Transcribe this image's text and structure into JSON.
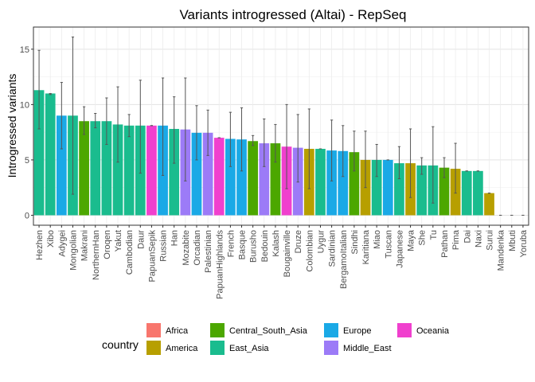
{
  "chart_data": {
    "type": "bar",
    "title": "Variants introgressed (Altai) - RepSeq",
    "xlabel": "",
    "ylabel": "Introgressed variants",
    "ylim": [
      -0.9,
      17.0
    ],
    "yticks": [
      0,
      5,
      10,
      15
    ],
    "grid": true,
    "legend_position": "bottom",
    "legend_title": "country",
    "groups": [
      {
        "name": "Africa",
        "color": "#F8766D"
      },
      {
        "name": "America",
        "color": "#B79F00"
      },
      {
        "name": "Central_South_Asia",
        "color": "#4CA700"
      },
      {
        "name": "East_Asia",
        "color": "#1ABC8E"
      },
      {
        "name": "Europe",
        "color": "#1AA9E6"
      },
      {
        "name": "Middle_East",
        "color": "#9C7BF7"
      },
      {
        "name": "Oceania",
        "color": "#F040CE"
      }
    ],
    "categories": [
      "Hezhen",
      "Xibo",
      "Adygei",
      "Mongolian",
      "Makrani",
      "NorthernHan",
      "Oroqen",
      "Yakut",
      "Cambodian",
      "Daur",
      "PapuanSepik",
      "Russian",
      "Han",
      "Mozabite",
      "Orcadian",
      "Palestinian",
      "PapuanHighlands",
      "French",
      "Basque",
      "Burusho",
      "Bedouin",
      "Kalash",
      "Bougainville",
      "Druze",
      "Colombian",
      "Uygur",
      "Sardinian",
      "BergamoItalian",
      "Sindhi",
      "Karitiana",
      "Miao",
      "Tuscan",
      "Japanese",
      "Maya",
      "She",
      "Tu",
      "Pathan",
      "Pima",
      "Dai",
      "Naxi",
      "Surui",
      "Mandenka",
      "Mbuti",
      "Yoruba"
    ],
    "values": [
      11.3,
      11.0,
      9.0,
      9.0,
      8.5,
      8.5,
      8.5,
      8.2,
      8.1,
      8.1,
      8.1,
      8.1,
      7.8,
      7.75,
      7.45,
      7.45,
      7.0,
      6.9,
      6.85,
      6.7,
      6.5,
      6.5,
      6.2,
      6.1,
      6.0,
      6.0,
      5.85,
      5.8,
      5.7,
      5.0,
      5.0,
      5.0,
      4.7,
      4.7,
      4.5,
      4.5,
      4.3,
      4.2,
      4.0,
      4.0,
      2.0,
      0.0,
      0.0,
      0.0
    ],
    "error_low": [
      7.8,
      10.9,
      6.0,
      1.9,
      7.3,
      7.9,
      6.4,
      4.8,
      7.1,
      3.8,
      8.1,
      3.6,
      4.7,
      3.1,
      5.0,
      5.4,
      7.0,
      4.4,
      4.0,
      6.3,
      4.4,
      4.8,
      2.4,
      3.0,
      2.4,
      6.0,
      3.1,
      3.5,
      4.0,
      2.5,
      3.5,
      5.0,
      3.3,
      1.6,
      3.7,
      1.1,
      3.4,
      2.0,
      4.0,
      4.0,
      2.0,
      0.0,
      0.0,
      0.0
    ],
    "error_high": [
      14.9,
      11.0,
      12.0,
      16.1,
      9.8,
      9.2,
      10.6,
      11.6,
      9.1,
      12.2,
      8.1,
      12.4,
      10.7,
      12.4,
      9.9,
      9.5,
      7.0,
      9.3,
      9.7,
      7.2,
      8.7,
      8.2,
      10.0,
      9.1,
      9.6,
      6.0,
      8.6,
      8.1,
      7.6,
      7.6,
      6.4,
      5.0,
      6.2,
      7.8,
      5.2,
      8.0,
      5.2,
      6.5,
      4.0,
      4.0,
      2.0,
      0.0,
      0.0,
      0.0
    ],
    "group_index": [
      3,
      3,
      4,
      3,
      2,
      3,
      3,
      3,
      3,
      3,
      6,
      4,
      3,
      5,
      4,
      5,
      6,
      4,
      4,
      2,
      5,
      2,
      6,
      5,
      1,
      3,
      4,
      4,
      2,
      1,
      3,
      4,
      3,
      1,
      3,
      3,
      2,
      1,
      3,
      3,
      1,
      0,
      0,
      0
    ]
  }
}
